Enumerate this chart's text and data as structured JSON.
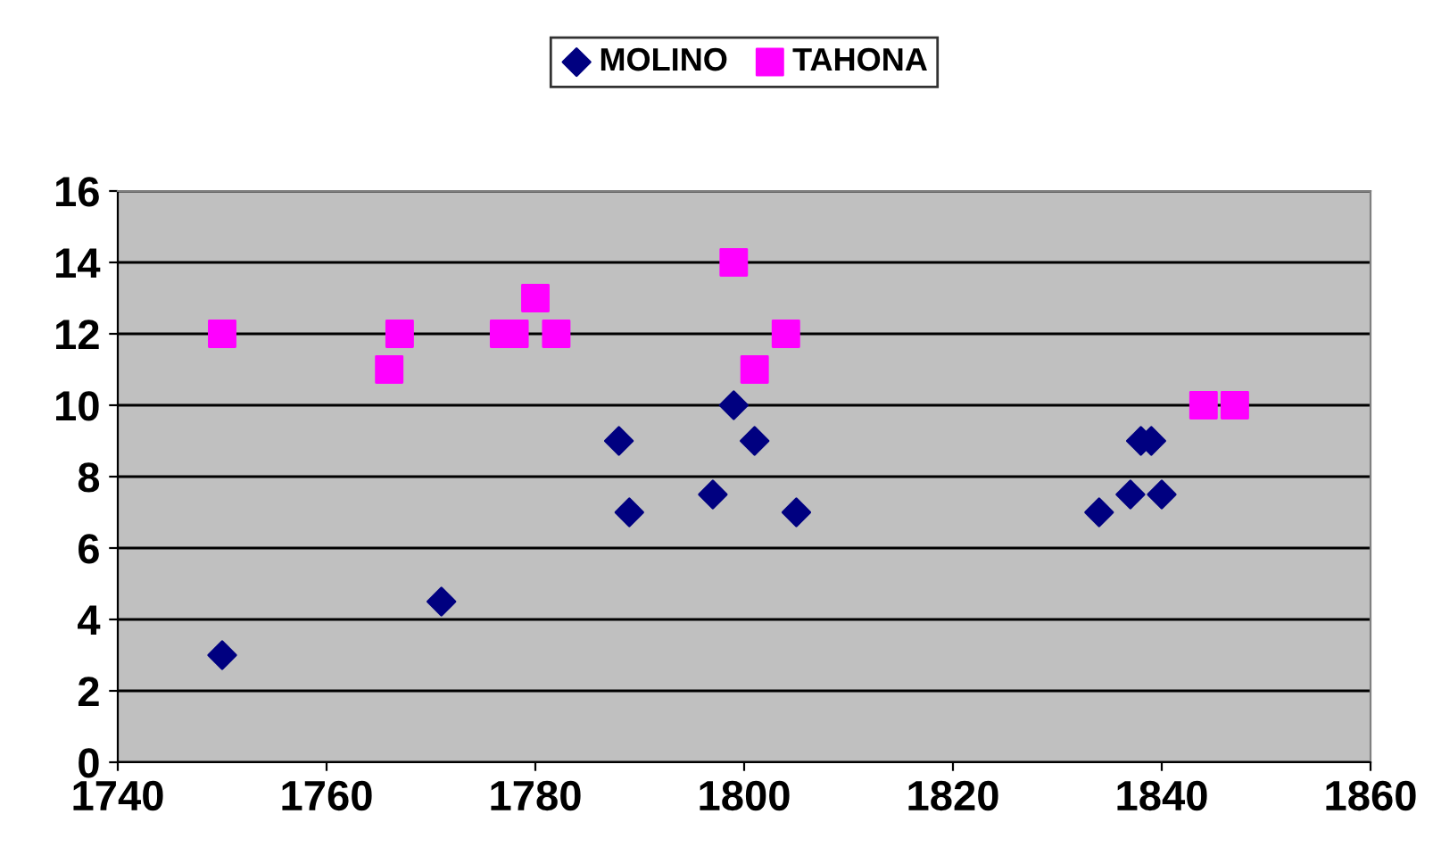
{
  "chart_data": {
    "type": "scatter",
    "xlim": [
      1740,
      1860
    ],
    "xticks": [
      1740,
      1760,
      1780,
      1800,
      1820,
      1840,
      1860
    ],
    "ylim": [
      0,
      16
    ],
    "yticks": [
      0,
      2,
      4,
      6,
      8,
      10,
      12,
      14,
      16
    ],
    "grid": "y",
    "legend": "top",
    "series": [
      {
        "name": "MOLINO",
        "color": "#000080",
        "marker": "diamond",
        "x": [
          1750,
          1771,
          1788,
          1789,
          1797,
          1799,
          1801,
          1805,
          1834,
          1837,
          1838,
          1839,
          1840
        ],
        "values": [
          3,
          4.5,
          9,
          7,
          7.5,
          10,
          9,
          7,
          7,
          7.5,
          9,
          9,
          7.5
        ]
      },
      {
        "name": "TAHONA",
        "color": "#ff00ff",
        "marker": "square",
        "x": [
          1750,
          1766,
          1767,
          1777,
          1778,
          1780,
          1782,
          1799,
          1801,
          1804,
          1844,
          1847
        ],
        "values": [
          12,
          11,
          12,
          12,
          12,
          13,
          12,
          14,
          11,
          12,
          10,
          10
        ]
      }
    ]
  }
}
